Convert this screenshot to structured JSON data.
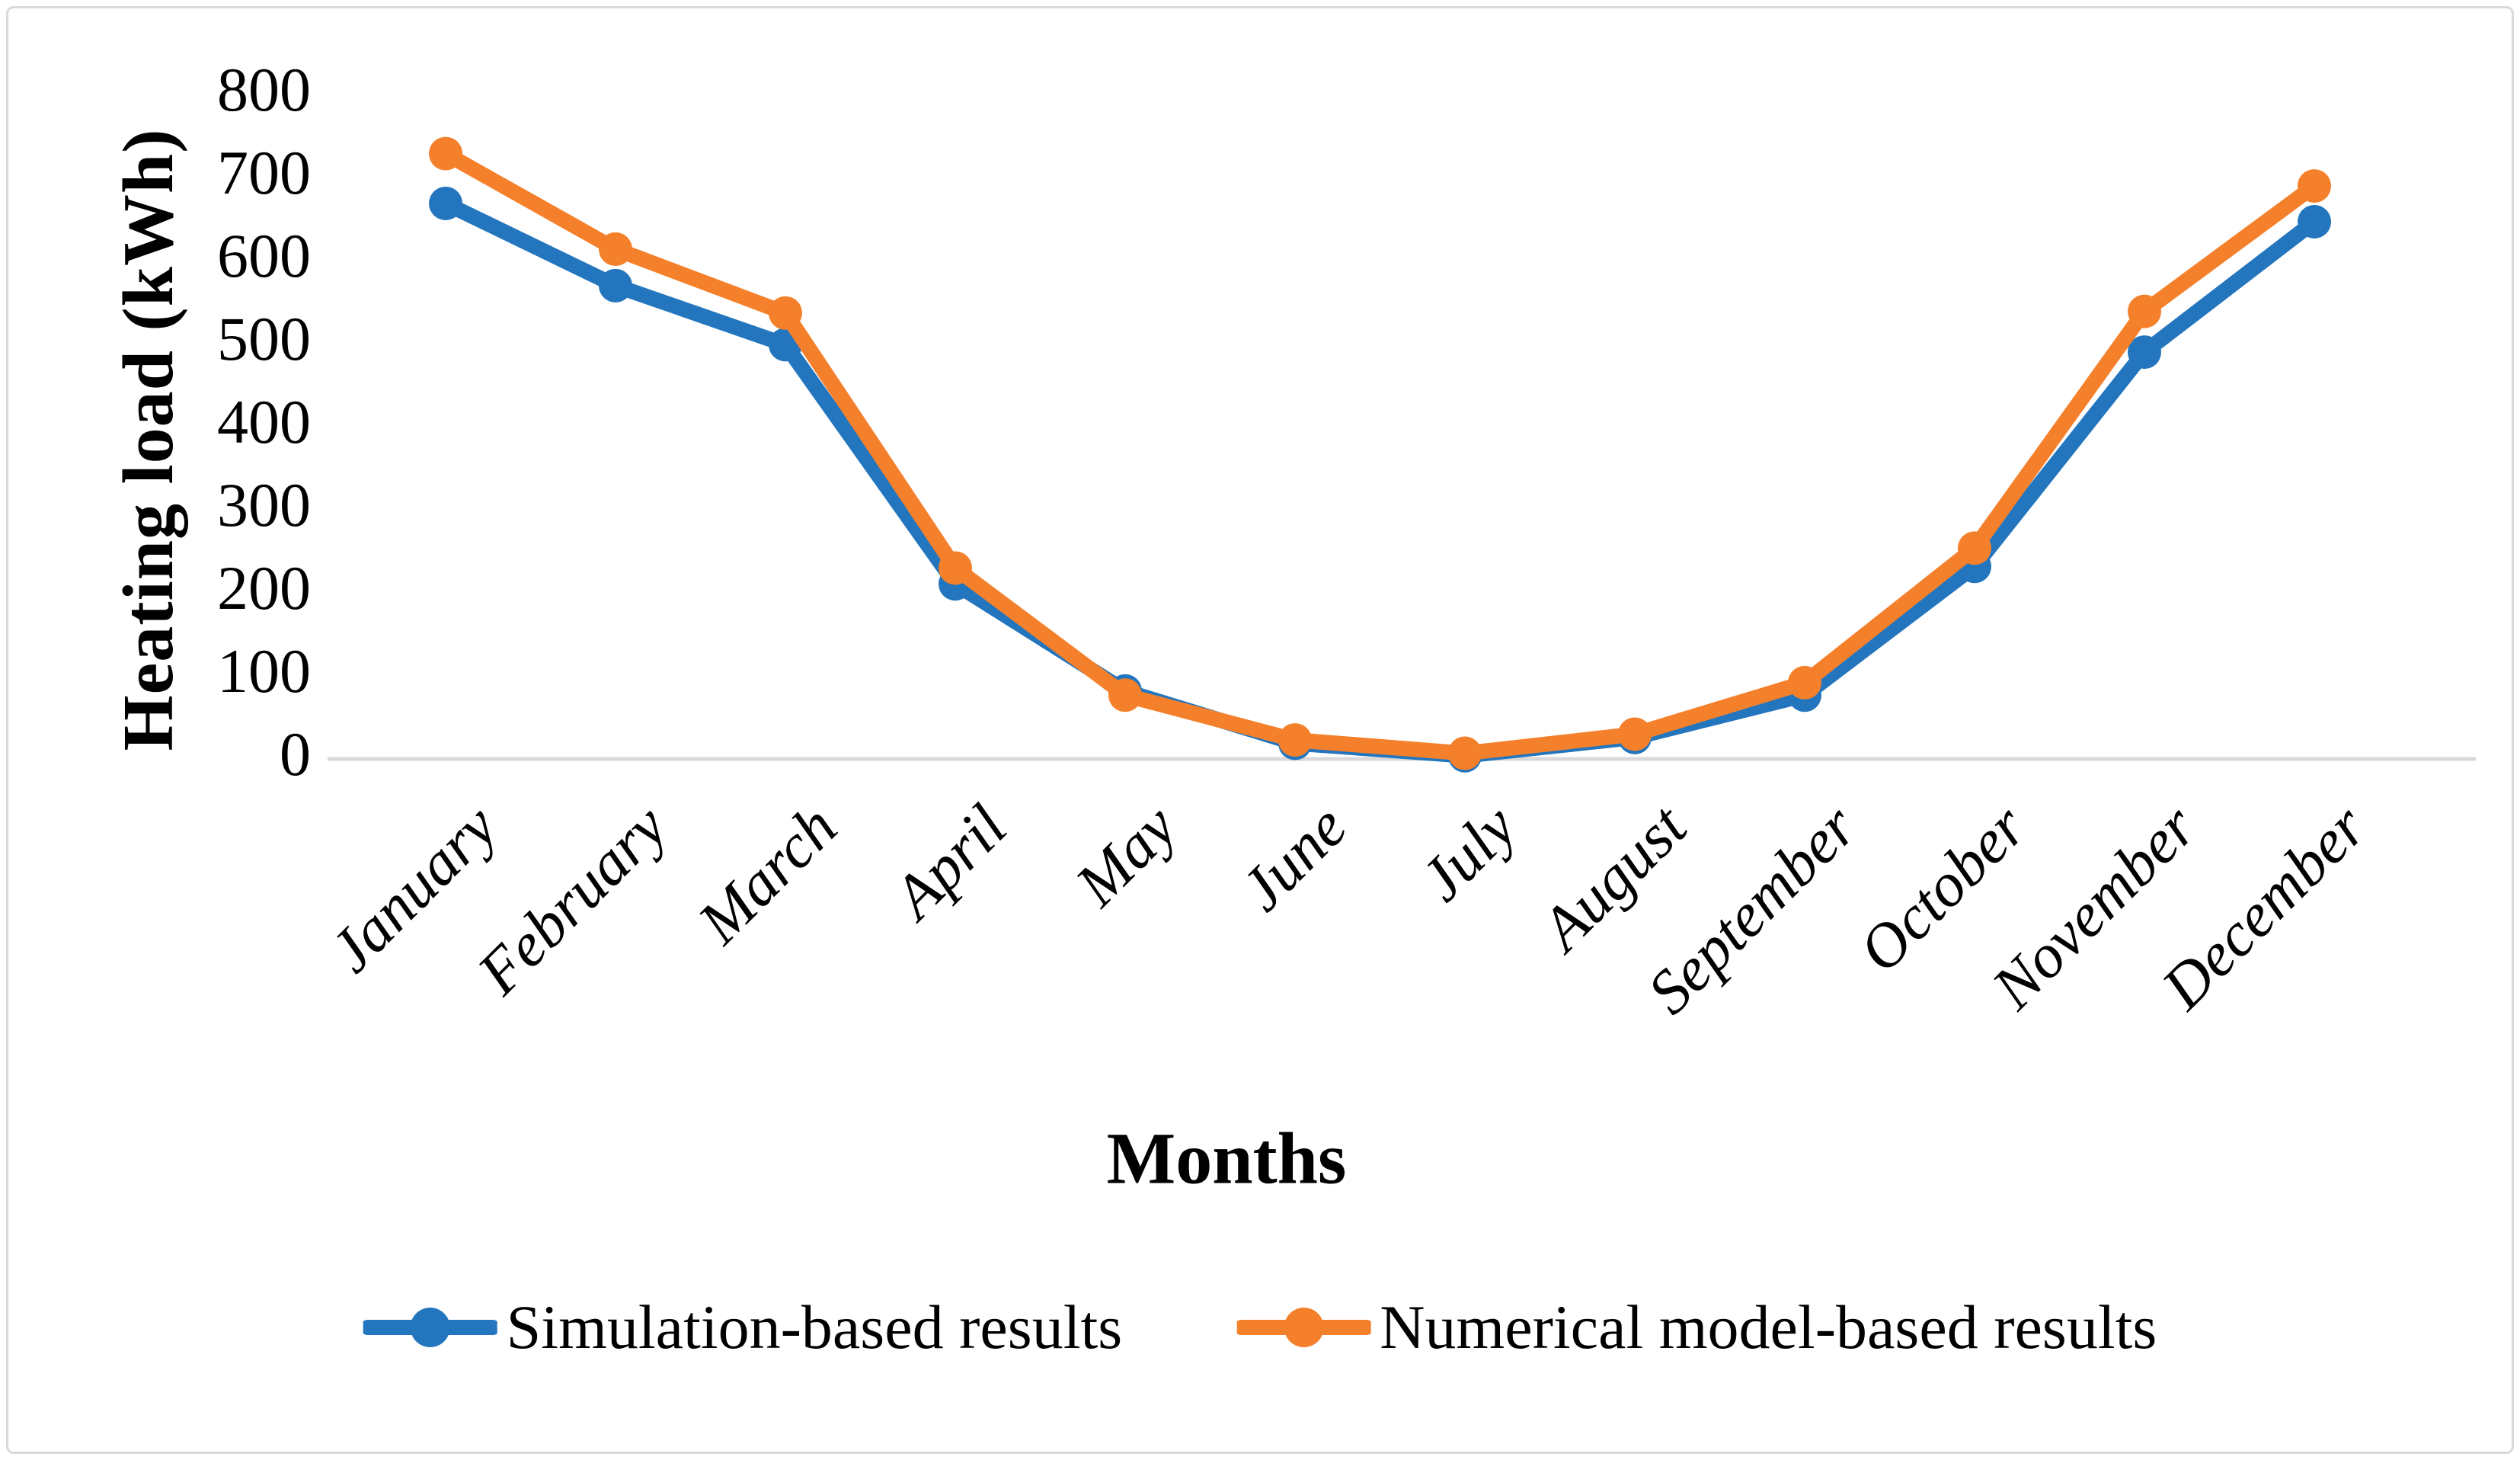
{
  "figure": {
    "background_color": "#ffffff",
    "border_color": "#d9d9d9"
  },
  "chart_data": {
    "type": "line",
    "title": "",
    "xlabel": "Months",
    "ylabel": "Heating load (kWh)",
    "ylim": [
      0,
      800
    ],
    "ytick_interval": 100,
    "yticks": [
      800,
      700,
      600,
      500,
      400,
      300,
      200,
      100,
      0
    ],
    "grid": false,
    "axis_line_color": "#d9d9d9",
    "legend_position": "bottom",
    "categories": [
      "January",
      "February",
      "March",
      "April",
      "May",
      "June",
      "July",
      "August",
      "September",
      "October",
      "November",
      "December"
    ],
    "series": [
      {
        "name": "Simulation-based results",
        "color": "#2375be",
        "marker": "circle",
        "values": [
          667,
          568,
          497,
          209,
          80,
          17,
          2,
          24,
          75,
          230,
          488,
          645
        ]
      },
      {
        "name": "Numerical model-based results",
        "color": "#f5802b",
        "marker": "circle",
        "values": [
          727,
          612,
          535,
          228,
          75,
          21,
          5,
          28,
          90,
          252,
          537,
          688
        ]
      }
    ]
  }
}
